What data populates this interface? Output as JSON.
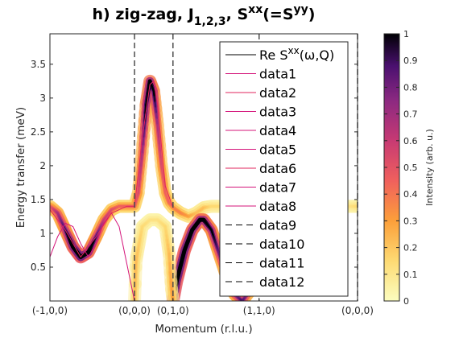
{
  "chart_data": {
    "type": "line",
    "title": {
      "main": "h) zig-zag, J",
      "sub1": "1,2,3",
      "mid": ", S",
      "sup1": "xx",
      "end1": "(=S",
      "sup2": "yy",
      "end2": ")"
    },
    "xlabel": "Momentum (r.l.u.)",
    "ylabel": "Energy transfer (meV)",
    "xlim": [
      0,
      4
    ],
    "ylim": [
      0,
      3.95
    ],
    "x_ticks": [
      {
        "pos": 0,
        "label": "(-1,0,0)"
      },
      {
        "pos": 1.1,
        "label": "(0,0,0)"
      },
      {
        "pos": 1.6,
        "label": "(0,1,0)"
      },
      {
        "pos": 2.72,
        "label": "(1,1,0)"
      },
      {
        "pos": 4,
        "label": "(0,0,0)"
      }
    ],
    "y_ticks": [
      {
        "value": 0.5,
        "label": "0.5"
      },
      {
        "value": 1,
        "label": "1"
      },
      {
        "value": 1.5,
        "label": "1.5"
      },
      {
        "value": 2,
        "label": "2"
      },
      {
        "value": 2.5,
        "label": "2.5"
      },
      {
        "value": 3,
        "label": "3"
      },
      {
        "value": 3.5,
        "label": "3.5"
      }
    ],
    "vlines": [
      1.1,
      1.6,
      2.72,
      4
    ],
    "colorbar": {
      "label": "Intensity (arb. u.)",
      "range": [
        0,
        1
      ],
      "ticks": [
        "0",
        "0.1",
        "0.2",
        "0.3",
        "0.4",
        "0.5",
        "0.6",
        "0.7",
        "0.8",
        "0.9",
        "1"
      ]
    },
    "legend": {
      "position": "top-right",
      "first": {
        "pre": "Re S",
        "sup": "xx",
        "post": "(ω,Q)"
      },
      "entries": [
        {
          "name": "data1",
          "style": "solid",
          "color": "#d4147a"
        },
        {
          "name": "data2",
          "style": "solid",
          "color": "#e0245e"
        },
        {
          "name": "data3",
          "style": "solid",
          "color": "#d4147a"
        },
        {
          "name": "data4",
          "style": "solid",
          "color": "#d4147a"
        },
        {
          "name": "data5",
          "style": "solid",
          "color": "#d4147a"
        },
        {
          "name": "data6",
          "style": "solid",
          "color": "#e0245e"
        },
        {
          "name": "data7",
          "style": "solid",
          "color": "#d4147a"
        },
        {
          "name": "data8",
          "style": "solid",
          "color": "#d4147a"
        },
        {
          "name": "data9",
          "style": "dashed",
          "color": "#000000"
        },
        {
          "name": "data10",
          "style": "dashed",
          "color": "#000000"
        },
        {
          "name": "data11",
          "style": "dashed",
          "color": "#000000"
        },
        {
          "name": "data12",
          "style": "dashed",
          "color": "#000000"
        }
      ]
    },
    "intensity_bands": [
      {
        "x": [
          0,
          0.1,
          0.2,
          0.3,
          0.4,
          0.5,
          0.6,
          0.7,
          0.8,
          0.9,
          1.0,
          1.1,
          1.15,
          1.2,
          1.25,
          1.3,
          1.35,
          1.4,
          1.45,
          1.5,
          1.55,
          1.6,
          1.7,
          1.8,
          1.9,
          2.0,
          2.1,
          2.2,
          2.3,
          2.4,
          2.5,
          2.6,
          2.72,
          2.8,
          2.9,
          3.0,
          3.2,
          3.4,
          3.6,
          3.8,
          4.0
        ],
        "y": [
          1.4,
          1.3,
          1.05,
          0.8,
          0.65,
          0.72,
          0.95,
          1.2,
          1.35,
          1.4,
          1.4,
          1.4,
          1.6,
          2.2,
          2.9,
          3.25,
          3.1,
          2.6,
          2.0,
          1.6,
          1.45,
          1.38,
          1.3,
          1.25,
          1.3,
          1.38,
          1.4,
          1.4,
          1.4,
          1.4,
          1.4,
          1.4,
          1.4,
          1.4,
          1.4,
          1.4,
          1.4,
          1.4,
          1.4,
          1.4,
          1.4
        ],
        "intensity": [
          0.3,
          0.45,
          0.6,
          0.85,
          0.95,
          0.85,
          0.6,
          0.4,
          0.35,
          0.3,
          0.3,
          0.3,
          0.35,
          0.45,
          0.7,
          0.8,
          0.7,
          0.45,
          0.35,
          0.3,
          0.3,
          0.25,
          0.25,
          0.2,
          0.15,
          0.15,
          0.1,
          0.1,
          0.1,
          0.1,
          0.1,
          0.08,
          0.05,
          0.05,
          0.05,
          0.05,
          0.05,
          0.05,
          0.05,
          0.05,
          0.1
        ]
      },
      {
        "x": [
          1.6,
          1.65,
          1.75,
          1.85,
          1.95,
          2.0,
          2.1,
          2.2,
          2.3,
          2.4,
          2.5,
          2.6,
          2.72
        ],
        "y": [
          0.0,
          0.3,
          0.75,
          1.05,
          1.2,
          1.2,
          1.05,
          0.7,
          0.35,
          0.1,
          0.0,
          0.15,
          0.4
        ],
        "intensity": [
          1.0,
          0.95,
          0.9,
          0.85,
          0.8,
          0.8,
          0.7,
          0.55,
          0.5,
          0.5,
          0.6,
          0.45,
          0.3
        ]
      },
      {
        "x": [
          1.1,
          1.12,
          1.2,
          1.3,
          1.4,
          1.5,
          1.55,
          1.58,
          1.6
        ],
        "y": [
          0.0,
          0.6,
          1.1,
          1.2,
          1.2,
          1.1,
          0.7,
          0.2,
          0.0
        ],
        "intensity": [
          0.15,
          0.15,
          0.1,
          0.08,
          0.08,
          0.1,
          0.15,
          0.2,
          0.2
        ]
      }
    ],
    "thin_lines": [
      {
        "name": "data1",
        "x": [
          0,
          0.1,
          0.2,
          0.3,
          0.4,
          0.5,
          0.6,
          0.7,
          0.8,
          0.9,
          1.0,
          1.1
        ],
        "y": [
          0.65,
          0.95,
          1.15,
          1.1,
          0.85,
          0.65,
          0.85,
          1.15,
          1.3,
          1.1,
          0.55,
          0.0
        ]
      },
      {
        "name": "data2",
        "x": [
          0,
          0.2,
          0.4,
          0.6,
          0.8,
          1.0,
          1.1,
          1.2,
          1.3,
          1.35,
          1.4,
          1.5,
          1.6
        ],
        "y": [
          1.35,
          1.05,
          0.65,
          0.95,
          1.3,
          1.4,
          1.4,
          2.4,
          3.2,
          3.25,
          2.9,
          1.7,
          1.38
        ]
      }
    ]
  }
}
